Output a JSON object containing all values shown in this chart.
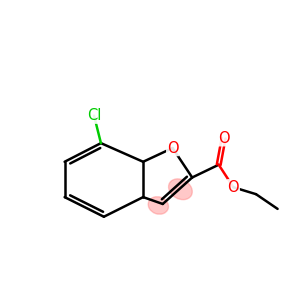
{
  "background": "#ffffff",
  "atom_color_C": "#000000",
  "atom_color_O": "#ff0000",
  "atom_color_Cl": "#00cc00",
  "bond_lw": 1.8,
  "figsize": [
    3.0,
    3.0
  ],
  "dpi": 100,
  "xlim": [
    0,
    10
  ],
  "ylim": [
    0,
    10
  ]
}
